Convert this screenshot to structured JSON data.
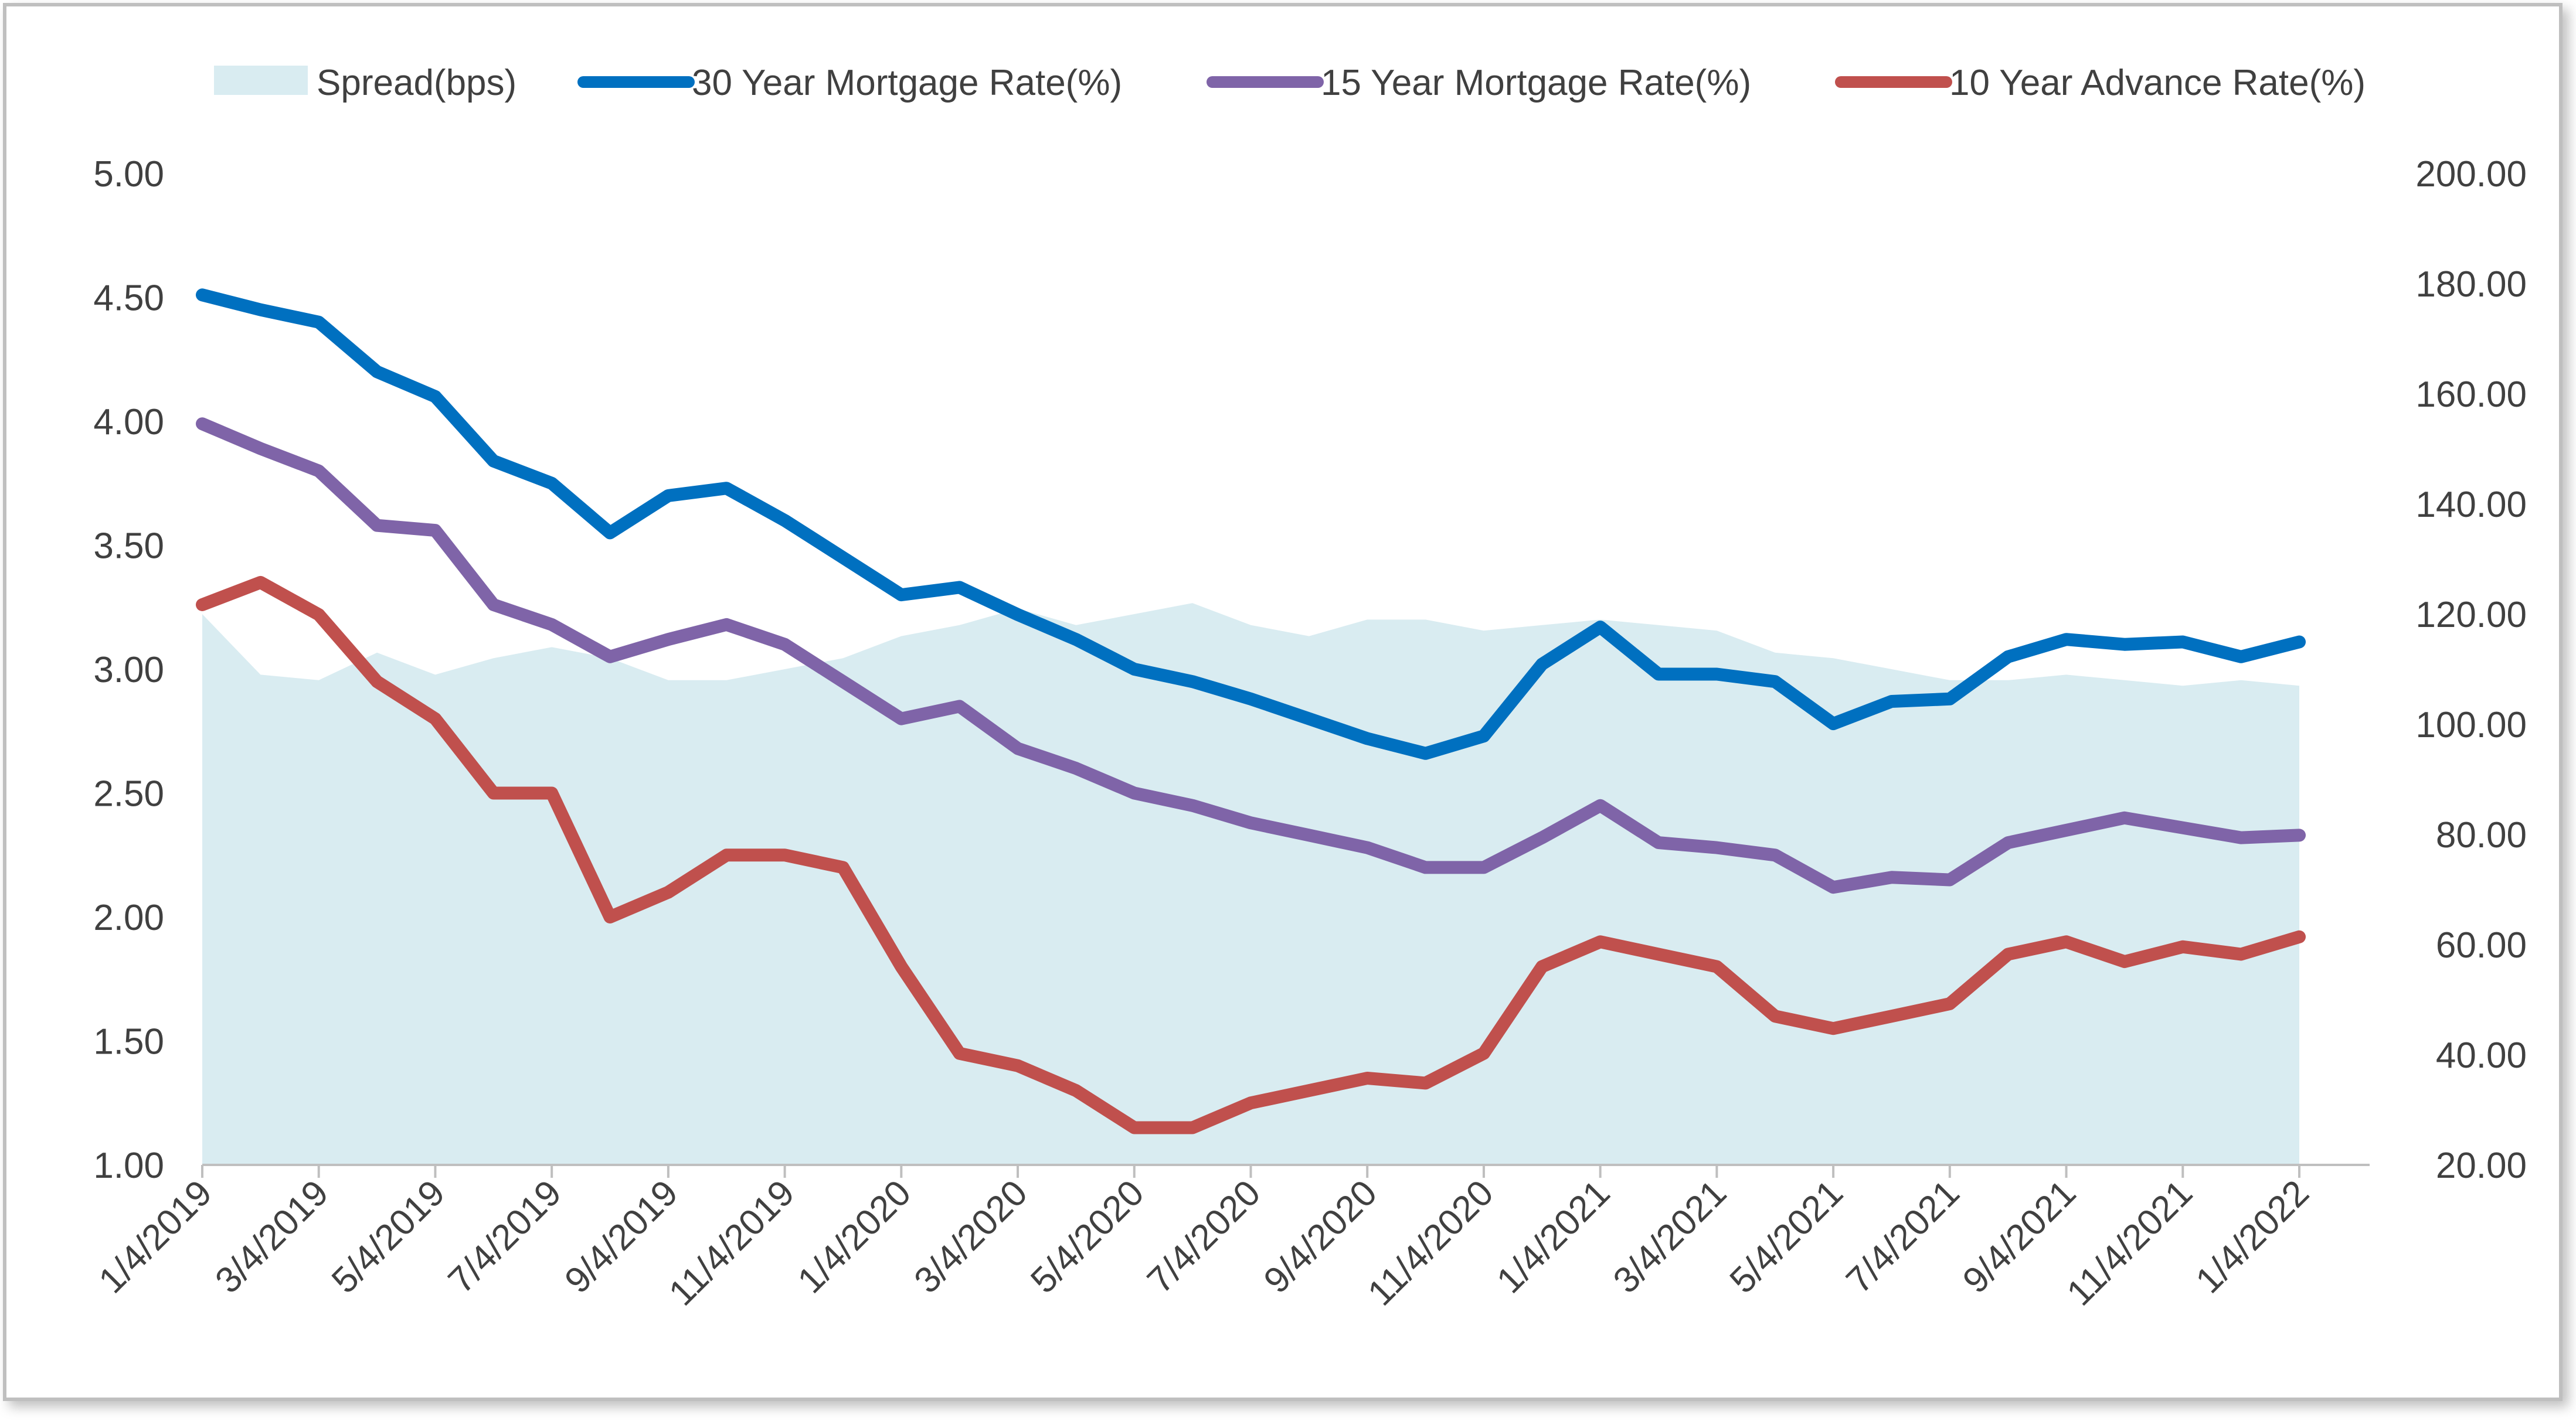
{
  "chart_data": {
    "type": "line",
    "title": "",
    "xlabel": "",
    "ylabel": "",
    "y2label": "",
    "x_tick_labels": [
      "1/4/2019",
      "3/4/2019",
      "5/4/2019",
      "7/4/2019",
      "9/4/2019",
      "11/4/2019",
      "1/4/2020",
      "3/4/2020",
      "5/4/2020",
      "7/4/2020",
      "9/4/2020",
      "11/4/2020",
      "1/4/2021",
      "3/4/2021",
      "5/4/2021",
      "7/4/2021",
      "9/4/2021",
      "11/4/2021",
      "1/4/2022"
    ],
    "y_left": {
      "min": 1.0,
      "max": 5.0,
      "ticks": [
        "1.00",
        "1.50",
        "2.00",
        "2.50",
        "3.00",
        "3.50",
        "4.00",
        "4.50",
        "5.00"
      ]
    },
    "y_right": {
      "min": 20.0,
      "max": 200.0,
      "ticks": [
        "20.00",
        "40.00",
        "60.00",
        "80.00",
        "100.00",
        "120.00",
        "140.00",
        "160.00",
        "180.00",
        "200.00"
      ]
    },
    "legend_position": "top",
    "grid": false,
    "colors": {
      "spread": "#d9ecf1",
      "rate30": "#0070c0",
      "rate15": "#7f64a8",
      "adv10": "#c0504d",
      "axis": "#bfbfbf",
      "text": "#404040"
    },
    "series": [
      {
        "name": "Spread(bps)",
        "kind": "area",
        "axis": "right",
        "x": [
          0,
          1,
          2,
          3,
          4,
          5,
          6,
          7,
          8,
          9,
          10,
          11,
          12,
          13,
          14,
          15,
          16,
          17,
          18,
          19,
          20,
          21,
          22,
          23,
          24,
          25,
          26,
          27,
          28,
          29,
          30,
          31,
          32,
          33,
          34,
          35,
          36
        ],
        "values": [
          120,
          109,
          108,
          113,
          109,
          112,
          114,
          112,
          108,
          108,
          110,
          112,
          116,
          118,
          121,
          118,
          120,
          122,
          118,
          116,
          119,
          119,
          117,
          118,
          119,
          118,
          117,
          113,
          112,
          110,
          108,
          108,
          109,
          108,
          107,
          108,
          107
        ]
      },
      {
        "name": "30 Year Mortgage Rate(%)",
        "kind": "line",
        "axis": "left",
        "x": [
          0,
          1,
          2,
          3,
          4,
          5,
          6,
          7,
          8,
          9,
          10,
          11,
          12,
          13,
          14,
          15,
          16,
          17,
          18,
          19,
          20,
          21,
          22,
          23,
          24,
          25,
          26,
          27,
          28,
          29,
          30,
          31,
          32,
          33,
          34,
          35,
          36
        ],
        "values": [
          4.51,
          4.45,
          4.4,
          4.2,
          4.1,
          3.84,
          3.75,
          3.55,
          3.7,
          3.73,
          3.6,
          3.45,
          3.3,
          3.33,
          3.22,
          3.12,
          3.0,
          2.95,
          2.88,
          2.8,
          2.72,
          2.66,
          2.73,
          3.02,
          3.17,
          2.98,
          2.98,
          2.95,
          2.78,
          2.87,
          2.88,
          3.05,
          3.12,
          3.1,
          3.11,
          3.05,
          3.11
        ]
      },
      {
        "name": "15 Year Mortgage Rate(%)",
        "kind": "line",
        "axis": "left",
        "x": [
          0,
          1,
          2,
          3,
          4,
          5,
          6,
          7,
          8,
          9,
          10,
          11,
          12,
          13,
          14,
          15,
          16,
          17,
          18,
          19,
          20,
          21,
          22,
          23,
          24,
          25,
          26,
          27,
          28,
          29,
          30,
          31,
          32,
          33,
          34,
          35,
          36
        ],
        "values": [
          3.99,
          3.89,
          3.8,
          3.58,
          3.56,
          3.26,
          3.18,
          3.05,
          3.12,
          3.18,
          3.1,
          2.95,
          2.8,
          2.85,
          2.68,
          2.6,
          2.5,
          2.45,
          2.38,
          2.33,
          2.28,
          2.2,
          2.2,
          2.32,
          2.45,
          2.3,
          2.28,
          2.25,
          2.12,
          2.16,
          2.15,
          2.3,
          2.35,
          2.4,
          2.36,
          2.32,
          2.33
        ]
      },
      {
        "name": "10 Year Advance Rate(%)",
        "kind": "line",
        "axis": "left",
        "x": [
          0,
          1,
          2,
          3,
          4,
          5,
          6,
          7,
          8,
          9,
          10,
          11,
          12,
          13,
          14,
          15,
          16,
          17,
          18,
          19,
          20,
          21,
          22,
          23,
          24,
          25,
          26,
          27,
          28,
          29,
          30,
          31,
          32,
          33,
          34,
          35,
          36
        ],
        "values": [
          3.26,
          3.35,
          3.22,
          2.95,
          2.8,
          2.5,
          2.5,
          2.0,
          2.1,
          2.25,
          2.25,
          2.2,
          1.8,
          1.45,
          1.4,
          1.3,
          1.15,
          1.15,
          1.25,
          1.3,
          1.35,
          1.33,
          1.45,
          1.8,
          1.9,
          1.85,
          1.8,
          1.6,
          1.55,
          1.6,
          1.65,
          1.85,
          1.9,
          1.82,
          1.88,
          1.85,
          1.92
        ]
      }
    ]
  }
}
